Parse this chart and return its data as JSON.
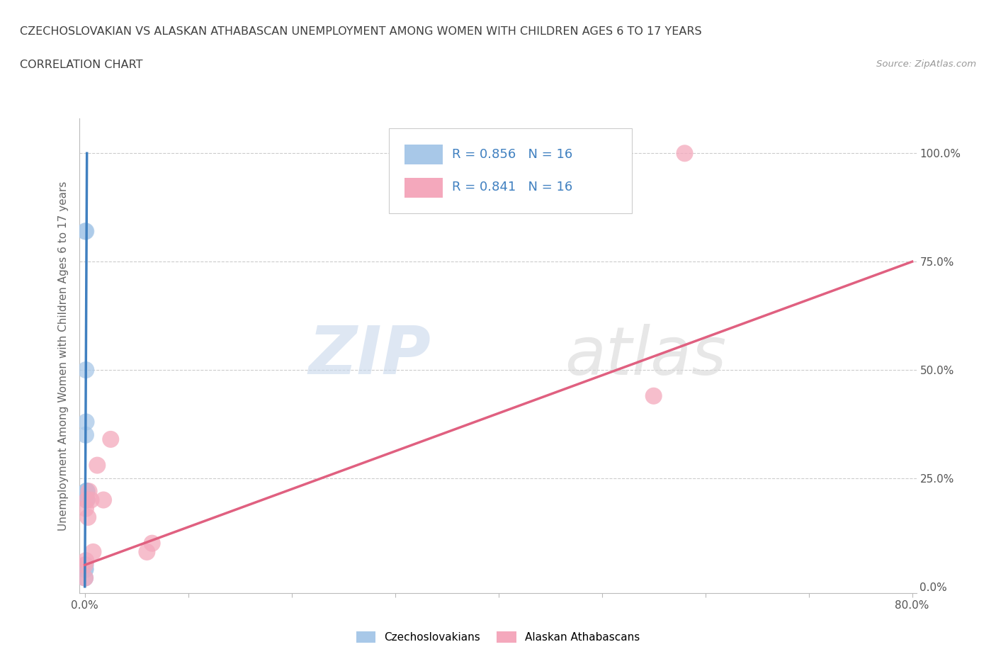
{
  "title_line1": "CZECHOSLOVAKIAN VS ALASKAN ATHABASCAN UNEMPLOYMENT AMONG WOMEN WITH CHILDREN AGES 6 TO 17 YEARS",
  "title_line2": "CORRELATION CHART",
  "source_text": "Source: ZipAtlas.com",
  "ylabel_text": "Unemployment Among Women with Children Ages 6 to 17 years",
  "legend_blue_label": "Czechoslovakians",
  "legend_pink_label": "Alaskan Athabascans",
  "R_blue": "0.856",
  "N_blue": "16",
  "R_pink": "0.841",
  "N_pink": "16",
  "blue_scatter_x": [
    0.0002,
    0.0003,
    0.0004,
    0.0005,
    0.0006,
    0.0008,
    0.001,
    0.001,
    0.0012,
    0.0013,
    0.0014,
    0.0015,
    0.0016,
    0.0017,
    0.0018,
    0.002
  ],
  "blue_scatter_y": [
    0.02,
    0.82,
    0.04,
    0.04,
    0.05,
    0.35,
    0.5,
    0.82,
    0.38,
    0.22,
    0.2,
    0.2,
    0.22,
    0.22,
    0.2,
    0.22
  ],
  "pink_scatter_x": [
    0.0001,
    0.0002,
    0.0008,
    0.001,
    0.002,
    0.003,
    0.004,
    0.006,
    0.008,
    0.012,
    0.018,
    0.025,
    0.06,
    0.065,
    0.55,
    0.58
  ],
  "pink_scatter_y": [
    0.05,
    0.02,
    0.18,
    0.06,
    0.2,
    0.16,
    0.22,
    0.2,
    0.08,
    0.28,
    0.2,
    0.34,
    0.08,
    0.1,
    0.44,
    1.0
  ],
  "blue_line_x0": 0.0,
  "blue_line_y0": 0.0,
  "blue_line_x1": 0.002,
  "blue_line_y1": 1.0,
  "pink_line_x0": 0.0,
  "pink_line_y0": 0.05,
  "pink_line_x1": 0.8,
  "pink_line_y1": 0.75,
  "blue_color": "#a8c8e8",
  "pink_color": "#f4a8bc",
  "blue_line_color": "#4080c0",
  "pink_line_color": "#e06080",
  "watermark_color": "#e0e8f0",
  "background_color": "#ffffff",
  "grid_color": "#cccccc",
  "title_color": "#404040",
  "stats_color": "#4080c0",
  "xmax": 0.8,
  "ymax": 1.0,
  "xticks": [
    0.0,
    0.1,
    0.2,
    0.3,
    0.4,
    0.5,
    0.6,
    0.7,
    0.8
  ],
  "yticks": [
    0.0,
    0.25,
    0.5,
    0.75,
    1.0
  ],
  "ytick_labels": [
    "0.0%",
    "25.0%",
    "50.0%",
    "75.0%",
    "100.0%"
  ]
}
